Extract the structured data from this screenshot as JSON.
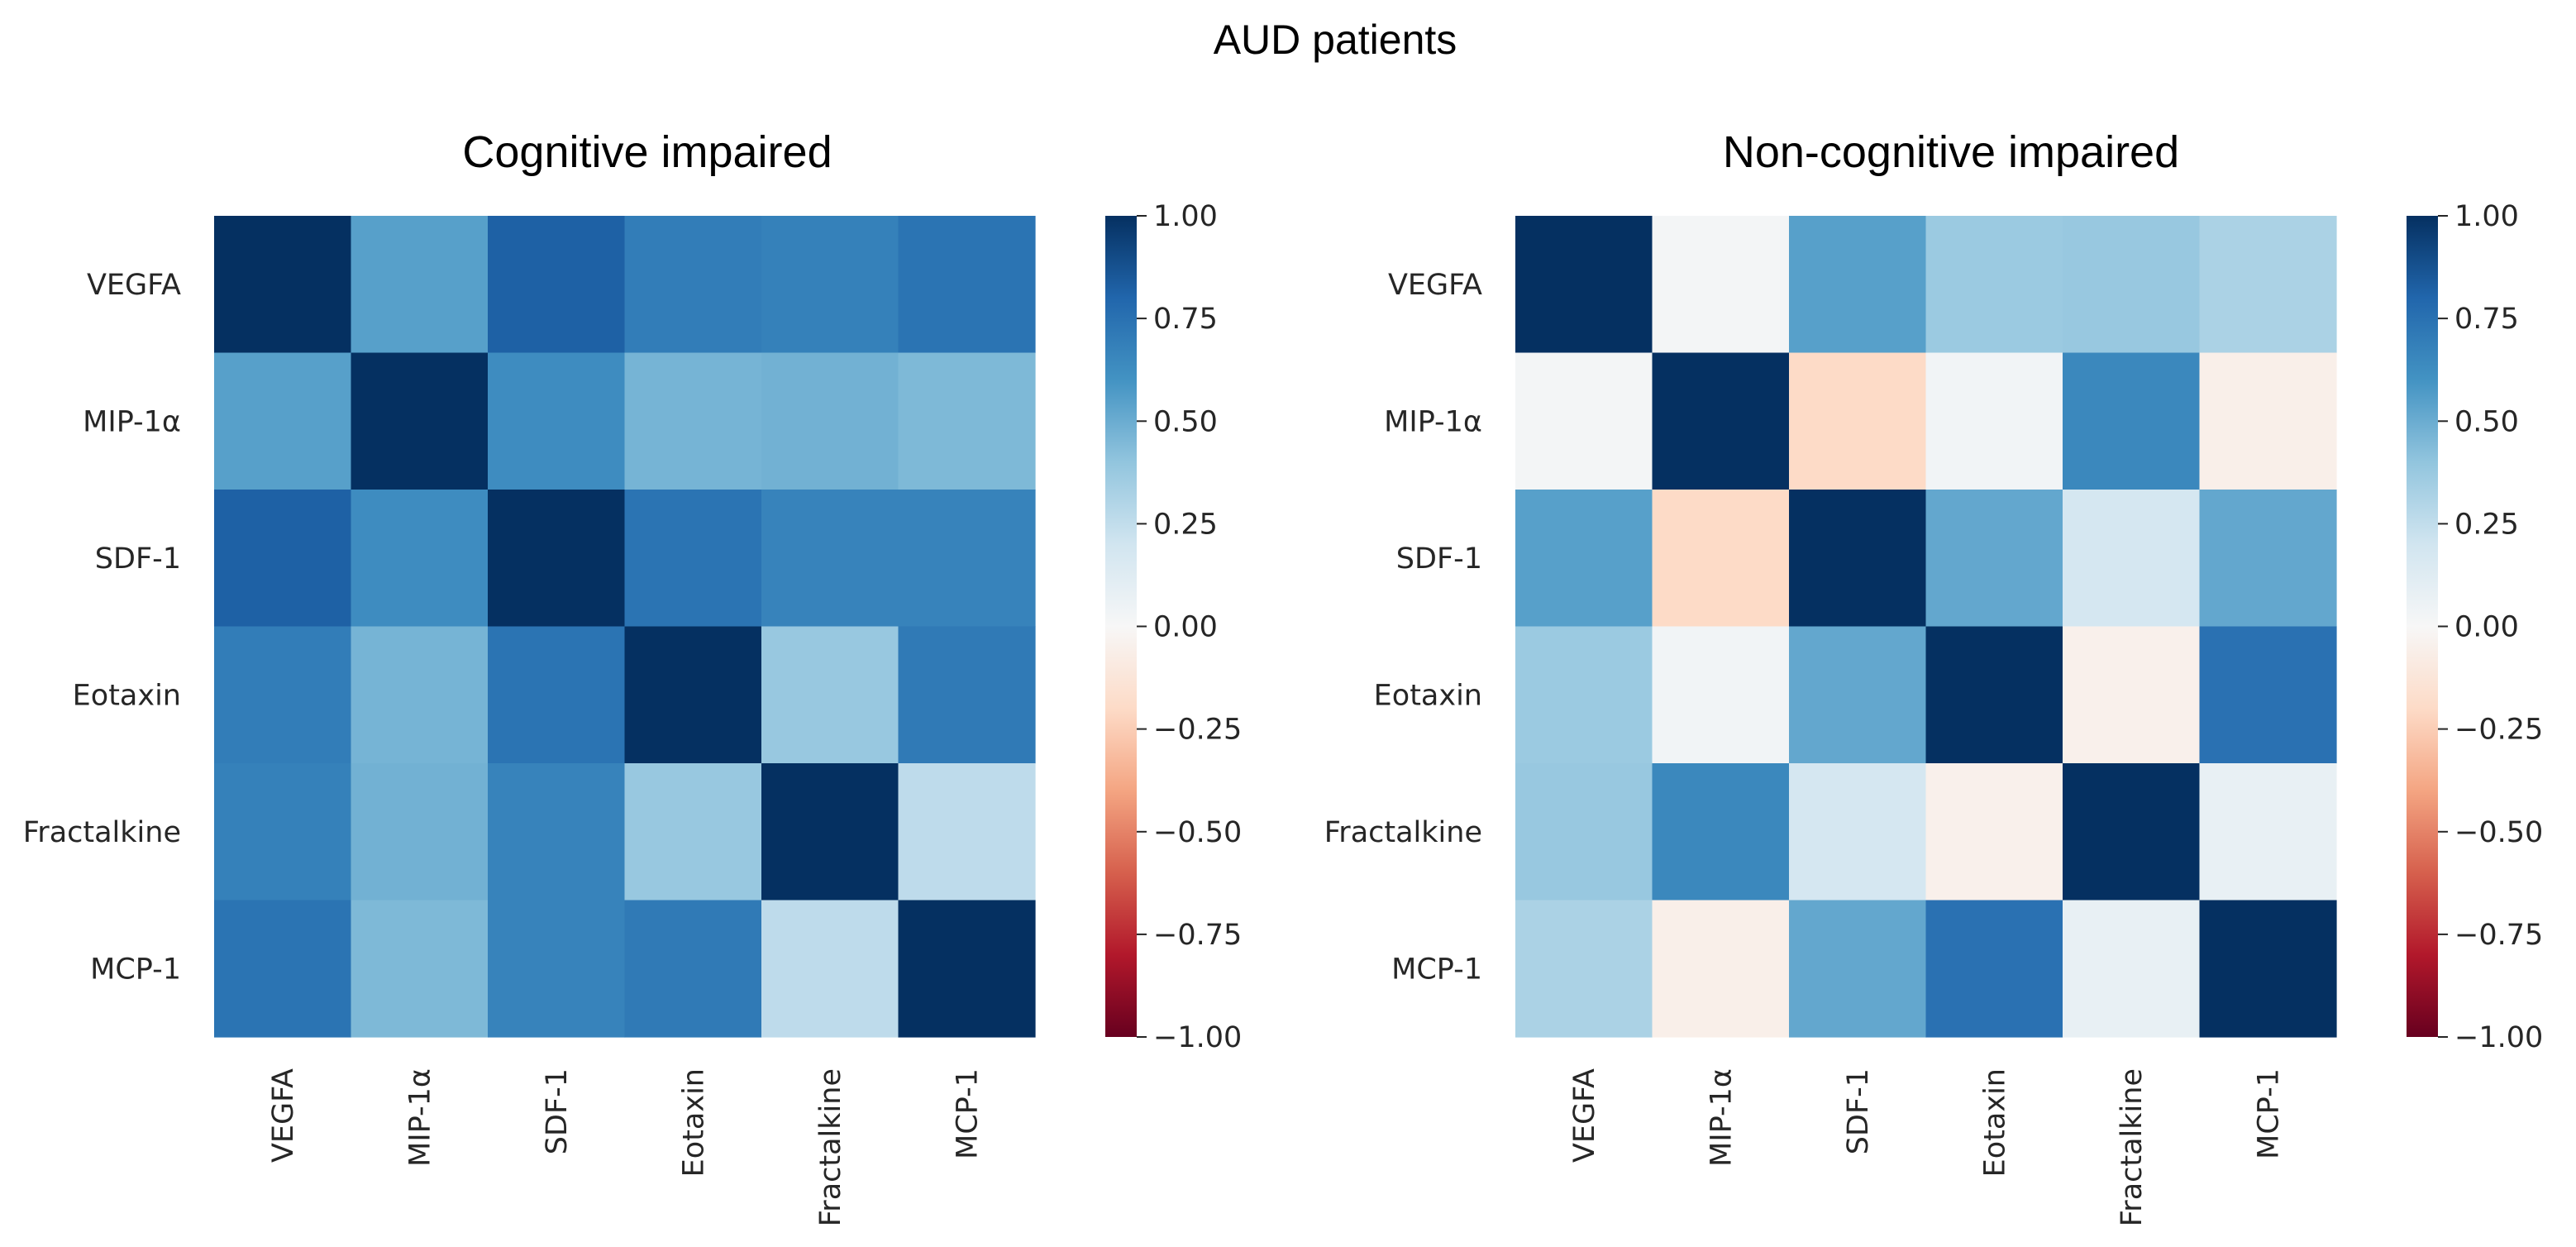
{
  "figure": {
    "title": "AUD patients"
  },
  "chart_data": [
    {
      "type": "heatmap",
      "title": "Cognitive impaired",
      "row_labels": [
        "VEGFA",
        "MIP-1α",
        "SDF-1",
        "Eotaxin",
        "Fractalkine",
        "MCP-1"
      ],
      "col_labels": [
        "VEGFA",
        "MIP-1α",
        "SDF-1",
        "Eotaxin",
        "Fractalkine",
        "MCP-1"
      ],
      "values": [
        [
          1.0,
          0.55,
          0.82,
          0.7,
          0.68,
          0.74
        ],
        [
          0.55,
          1.0,
          0.63,
          0.47,
          0.48,
          0.45
        ],
        [
          0.82,
          0.63,
          1.0,
          0.74,
          0.67,
          0.67
        ],
        [
          0.7,
          0.47,
          0.74,
          1.0,
          0.38,
          0.71
        ],
        [
          0.68,
          0.48,
          0.67,
          0.38,
          1.0,
          0.26
        ],
        [
          0.74,
          0.45,
          0.67,
          0.71,
          0.26,
          1.0
        ]
      ],
      "colorbar": {
        "vmin": -1.0,
        "vmax": 1.0,
        "ticks": [
          1.0,
          0.75,
          0.5,
          0.25,
          0.0,
          -0.25,
          -0.5,
          -0.75,
          -1.0
        ],
        "tick_labels": [
          "1.00",
          "0.75",
          "0.50",
          "0.25",
          "0.00",
          "−0.25",
          "−0.50",
          "−0.75",
          "−1.00"
        ]
      }
    },
    {
      "type": "heatmap",
      "title": "Non-cognitive impaired",
      "row_labels": [
        "VEGFA",
        "MIP-1α",
        "SDF-1",
        "Eotaxin",
        "Fractalkine",
        "MCP-1"
      ],
      "col_labels": [
        "VEGFA",
        "MIP-1α",
        "SDF-1",
        "Eotaxin",
        "Fractalkine",
        "MCP-1"
      ],
      "values": [
        [
          1.0,
          0.02,
          0.55,
          0.37,
          0.38,
          0.32
        ],
        [
          0.02,
          1.0,
          -0.2,
          0.03,
          0.65,
          -0.06
        ],
        [
          0.55,
          -0.2,
          1.0,
          0.52,
          0.18,
          0.52
        ],
        [
          0.37,
          0.03,
          0.52,
          1.0,
          -0.05,
          0.75
        ],
        [
          0.38,
          0.65,
          0.18,
          -0.05,
          1.0,
          0.08
        ],
        [
          0.32,
          -0.06,
          0.52,
          0.75,
          0.08,
          1.0
        ]
      ],
      "colorbar": {
        "vmin": -1.0,
        "vmax": 1.0,
        "ticks": [
          1.0,
          0.75,
          0.5,
          0.25,
          0.0,
          -0.25,
          -0.5,
          -0.75,
          -1.0
        ],
        "tick_labels": [
          "1.00",
          "0.75",
          "0.50",
          "0.25",
          "0.00",
          "−0.25",
          "−0.50",
          "−0.75",
          "−1.00"
        ]
      }
    }
  ]
}
